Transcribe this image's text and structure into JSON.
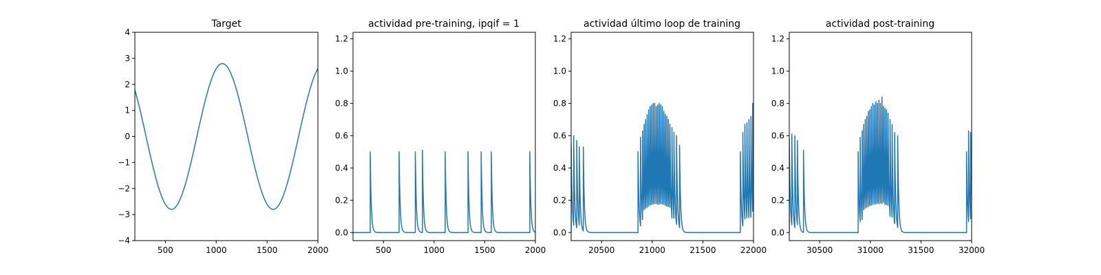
{
  "chart_data": [
    {
      "type": "line",
      "title": "Target",
      "xlim": [
        200,
        2000
      ],
      "ylim": [
        -4,
        4
      ],
      "xticks": [
        500,
        1000,
        1500,
        2000
      ],
      "yticks": [
        -4,
        -3,
        -2,
        -1,
        0,
        1,
        2,
        3,
        4
      ],
      "xtick_labels": [
        "500",
        "1000",
        "1500",
        "2000"
      ],
      "ytick_labels": [
        "−4",
        "−3",
        "−2",
        "−1",
        "0",
        "1",
        "2",
        "3",
        "4"
      ],
      "series": [
        {
          "kind": "sine",
          "amplitude": 2.8,
          "period": 1000,
          "trough_x": 560,
          "color": "#1f77b4"
        }
      ]
    },
    {
      "type": "line",
      "title": "actividad pre-training, ipqif = 1",
      "xlim": [
        200,
        2000
      ],
      "ylim": [
        -0.05,
        1.24
      ],
      "xticks": [
        500,
        1000,
        1500,
        2000
      ],
      "yticks": [
        0.0,
        0.2,
        0.4,
        0.6,
        0.8,
        1.0,
        1.2
      ],
      "xtick_labels": [
        "500",
        "1000",
        "1500",
        "2000"
      ],
      "ytick_labels": [
        "0.0",
        "0.2",
        "0.4",
        "0.6",
        "0.8",
        "1.0",
        "1.2"
      ],
      "series": [
        {
          "kind": "spikes",
          "decay": 10,
          "spikes": [
            [
              370,
              0.5
            ],
            [
              655,
              0.5
            ],
            [
              815,
              0.5
            ],
            [
              885,
              0.51
            ],
            [
              1110,
              0.5
            ],
            [
              1335,
              0.5
            ],
            [
              1465,
              0.5
            ],
            [
              1565,
              0.5
            ],
            [
              1945,
              0.5
            ]
          ],
          "color": "#1f77b4"
        }
      ]
    },
    {
      "type": "line",
      "title": "actividad último loop de training",
      "xlim": [
        20200,
        22000
      ],
      "ylim": [
        -0.05,
        1.24
      ],
      "xticks": [
        20500,
        21000,
        21500,
        22000
      ],
      "yticks": [
        0.0,
        0.2,
        0.4,
        0.6,
        0.8,
        1.0,
        1.2
      ],
      "xtick_labels": [
        "20500",
        "21000",
        "21500",
        "22000"
      ],
      "ytick_labels": [
        "0.0",
        "0.2",
        "0.4",
        "0.6",
        "0.8",
        "1.0",
        "1.2"
      ],
      "series": [
        {
          "kind": "spikes",
          "decay": 10,
          "spikes": [
            [
              20200,
              0.55
            ],
            [
              20225,
              0.6
            ],
            [
              20255,
              0.57
            ],
            [
              20280,
              0.53
            ],
            [
              20320,
              0.53
            ],
            [
              20860,
              0.5
            ],
            [
              20885,
              0.59
            ],
            [
              20905,
              0.63
            ],
            [
              20920,
              0.67
            ],
            [
              20935,
              0.7
            ],
            [
              20950,
              0.73
            ],
            [
              20965,
              0.76
            ],
            [
              20980,
              0.78
            ],
            [
              20995,
              0.79
            ],
            [
              21010,
              0.8
            ],
            [
              21025,
              0.8
            ],
            [
              21040,
              0.78
            ],
            [
              21055,
              0.79
            ],
            [
              21070,
              0.8
            ],
            [
              21085,
              0.79
            ],
            [
              21100,
              0.78
            ],
            [
              21115,
              0.75
            ],
            [
              21130,
              0.73
            ],
            [
              21145,
              0.72
            ],
            [
              21160,
              0.7
            ],
            [
              21175,
              0.67
            ],
            [
              21195,
              0.65
            ],
            [
              21215,
              0.62
            ],
            [
              21240,
              0.6
            ],
            [
              21270,
              0.54
            ],
            [
              21870,
              0.5
            ],
            [
              21895,
              0.62
            ],
            [
              21915,
              0.67
            ],
            [
              21935,
              0.68
            ],
            [
              21955,
              0.7
            ],
            [
              21975,
              0.72
            ],
            [
              21992,
              0.8
            ]
          ],
          "color": "#1f77b4"
        }
      ]
    },
    {
      "type": "line",
      "title": "actividad post-training",
      "xlim": [
        30200,
        32000
      ],
      "ylim": [
        -0.05,
        1.24
      ],
      "xticks": [
        30500,
        31000,
        31500,
        32000
      ],
      "yticks": [
        0.0,
        0.2,
        0.4,
        0.6,
        0.8,
        1.0,
        1.2
      ],
      "xtick_labels": [
        "30500",
        "31000",
        "31500",
        "32000"
      ],
      "ytick_labels": [
        "0.0",
        "0.2",
        "0.4",
        "0.6",
        "0.8",
        "1.0",
        "1.2"
      ],
      "series": [
        {
          "kind": "spikes",
          "decay": 10,
          "spikes": [
            [
              30200,
              0.58
            ],
            [
              30225,
              0.61
            ],
            [
              30255,
              0.6
            ],
            [
              30280,
              0.57
            ],
            [
              30340,
              0.51
            ],
            [
              30880,
              0.5
            ],
            [
              30900,
              0.59
            ],
            [
              30920,
              0.63
            ],
            [
              30935,
              0.67
            ],
            [
              30950,
              0.7
            ],
            [
              30965,
              0.72
            ],
            [
              30980,
              0.75
            ],
            [
              30995,
              0.76
            ],
            [
              31010,
              0.78
            ],
            [
              31025,
              0.8
            ],
            [
              31040,
              0.79
            ],
            [
              31055,
              0.81
            ],
            [
              31070,
              0.8
            ],
            [
              31085,
              0.82
            ],
            [
              31100,
              0.8
            ],
            [
              31115,
              0.84
            ],
            [
              31130,
              0.78
            ],
            [
              31145,
              0.77
            ],
            [
              31160,
              0.76
            ],
            [
              31175,
              0.74
            ],
            [
              31195,
              0.7
            ],
            [
              31215,
              0.67
            ],
            [
              31240,
              0.62
            ],
            [
              31270,
              0.6
            ],
            [
              31950,
              0.5
            ],
            [
              31970,
              0.63
            ],
            [
              31990,
              0.62
            ]
          ],
          "color": "#1f77b4"
        }
      ]
    }
  ]
}
